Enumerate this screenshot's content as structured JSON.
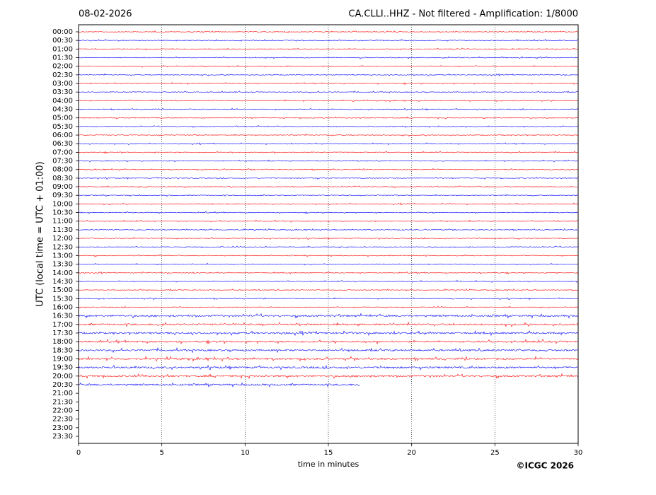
{
  "chart_data": {
    "type": "helicorder",
    "date": "08-02-2026",
    "title": "CA.CLLI..HHZ - Not filtered - Amplification: 1/8000",
    "ylabel": "UTC (local time = UTC + 01:00)",
    "xlabel": "time in minutes",
    "copyright": "©ICGC 2026",
    "categories": [
      "00:00",
      "00:30",
      "01:00",
      "01:30",
      "02:00",
      "02:30",
      "03:00",
      "03:30",
      "04:00",
      "04:30",
      "05:00",
      "05:30",
      "06:00",
      "06:30",
      "07:00",
      "07:30",
      "08:00",
      "08:30",
      "09:00",
      "09:30",
      "10:00",
      "10:30",
      "11:00",
      "11:30",
      "12:00",
      "12:30",
      "13:00",
      "13:30",
      "14:00",
      "14:30",
      "15:00",
      "15:30",
      "16:00",
      "16:30",
      "17:00",
      "17:30",
      "18:00",
      "18:30",
      "19:00",
      "19:30",
      "20:00",
      "20:30",
      "21:00",
      "21:30",
      "22:00",
      "22:30",
      "23:00",
      "23:30"
    ],
    "values": [
      30,
      30,
      30,
      30,
      30,
      30,
      30,
      30,
      30,
      30,
      30,
      30,
      30,
      30,
      30,
      30,
      30,
      30,
      30,
      30,
      30,
      30,
      30,
      30,
      30,
      30,
      30,
      30,
      30,
      30,
      30,
      30,
      30,
      30,
      30,
      30,
      30,
      30,
      30,
      30,
      30,
      16.9,
      null,
      null,
      null,
      null,
      null,
      null
    ],
    "colors": [
      "#ff0000",
      "#0000ff"
    ],
    "xlim": [
      0,
      30
    ],
    "xticks": [
      0,
      5,
      10,
      15,
      20,
      25,
      30
    ],
    "grid": true
  }
}
